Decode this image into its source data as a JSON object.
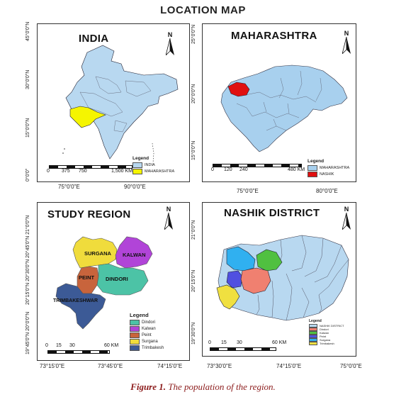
{
  "title": "LOCATION MAP",
  "caption": {
    "label": "Figure 1.",
    "text": "The population of the region."
  },
  "north_label": "N",
  "panels": {
    "india": {
      "title": "INDIA",
      "lat_ticks": [
        "45°0'0\"N",
        "30°0'0\"N",
        "15°0'0\"N",
        "0°0'0\""
      ],
      "lon_ticks": [
        "75°0'0\"E",
        "90°0'0\"E"
      ],
      "scale": [
        "0",
        "375",
        "750",
        "1,500 KM"
      ],
      "legend": {
        "title": "Legend",
        "items": [
          {
            "label": "INDIA",
            "color": "#b8d8f0"
          },
          {
            "label": "MAHARASHTRA",
            "color": "#f5f500"
          }
        ]
      }
    },
    "maharashtra": {
      "title": "MAHARASHTRA",
      "lat_ticks": [
        "25°0'0\"N",
        "20°0'0\"N",
        "15°0'0\"N"
      ],
      "lon_ticks": [
        "75°0'0\"E",
        "80°0'0\"E"
      ],
      "scale": [
        "0",
        "120",
        "240",
        "480 KM"
      ],
      "legend": {
        "title": "Legend",
        "items": [
          {
            "label": "MAHARASHTRA",
            "color": "#a8d0ee"
          },
          {
            "label": "NASHIK",
            "color": "#e01010"
          }
        ]
      }
    },
    "study": {
      "title": "STUDY REGION",
      "lat_ticks": [
        "20°45'0\"N 21°0'0\"N",
        "20°15'0\"N 20°30'0\"N",
        "19°45'0\"N 20°0'0\"N"
      ],
      "lon_ticks": [
        "73°15'0\"E",
        "73°45'0\"E",
        "74°15'0\"E"
      ],
      "scale": [
        "0",
        "15",
        "30",
        "60 KM"
      ],
      "regions": [
        "SURGANA",
        "KALWAN",
        "PEINT",
        "DINDORI",
        "TRIMBAKESHWAR"
      ],
      "legend": {
        "title": "Legend",
        "items": [
          {
            "label": "Dindori",
            "color": "#4cc3a6"
          },
          {
            "label": "Kalwan",
            "color": "#b144d8"
          },
          {
            "label": "Peint",
            "color": "#c8643c"
          },
          {
            "label": "Surgana",
            "color": "#f0dc3c"
          },
          {
            "label": "Trimbakesh",
            "color": "#3c5a96"
          }
        ]
      }
    },
    "nashik": {
      "title": "NASHIK DISTRICT",
      "lat_ticks": [
        "21°0'0\"N",
        "20°15'0\"N",
        "19°30'0\"N"
      ],
      "lon_ticks": [
        "73°30'0\"E",
        "74°15'0\"E",
        "75°0'0\"E"
      ],
      "scale": [
        "0",
        "15",
        "30",
        "60 KM"
      ],
      "legend": {
        "title": "Legend",
        "items": [
          {
            "label": "NASHIK DISTRICT",
            "color": "#b8d8f0"
          },
          {
            "label": "Dindori",
            "color": "#f08070"
          },
          {
            "label": "Kalwan",
            "color": "#50c040"
          },
          {
            "label": "Peint",
            "color": "#5050e0"
          },
          {
            "label": "Surgana",
            "color": "#30b0f0"
          },
          {
            "label": "Trimbakesh",
            "color": "#f0e040"
          }
        ]
      }
    }
  }
}
